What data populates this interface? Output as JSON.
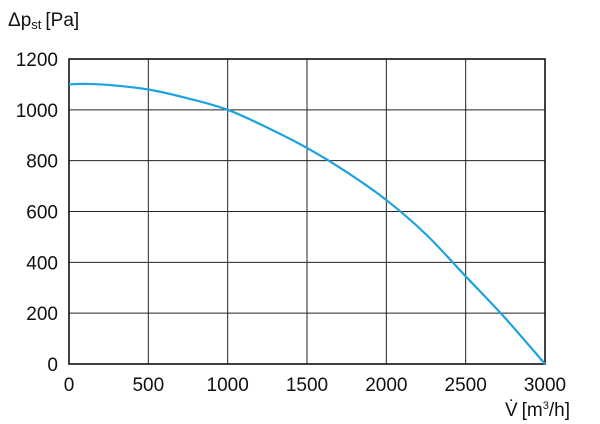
{
  "chart_data": {
    "type": "line",
    "ylabel": {
      "symbol": "Δp",
      "subscript": "st",
      "unit": "[Pa]"
    },
    "xlabel": {
      "symbol": "V̇",
      "unit_prefix": "[m",
      "unit_power": "3",
      "unit_suffix": "/h]"
    },
    "xlim": [
      0,
      3000
    ],
    "ylim": [
      0,
      1200
    ],
    "x_ticks": [
      "0",
      "500",
      "1000",
      "1500",
      "2000",
      "2500",
      "3000"
    ],
    "y_ticks": [
      "0",
      "200",
      "400",
      "600",
      "800",
      "1000",
      "1200"
    ],
    "grid": true,
    "line_color": "#1aa3dc",
    "series": [
      {
        "x": [
          0,
          100,
          250,
          500,
          750,
          1000,
          1250,
          1500,
          1750,
          2000,
          2250,
          2500,
          2750,
          3000
        ],
        "y": [
          1100,
          1102,
          1098,
          1080,
          1045,
          1000,
          930,
          850,
          755,
          645,
          510,
          345,
          180,
          0
        ]
      }
    ]
  }
}
